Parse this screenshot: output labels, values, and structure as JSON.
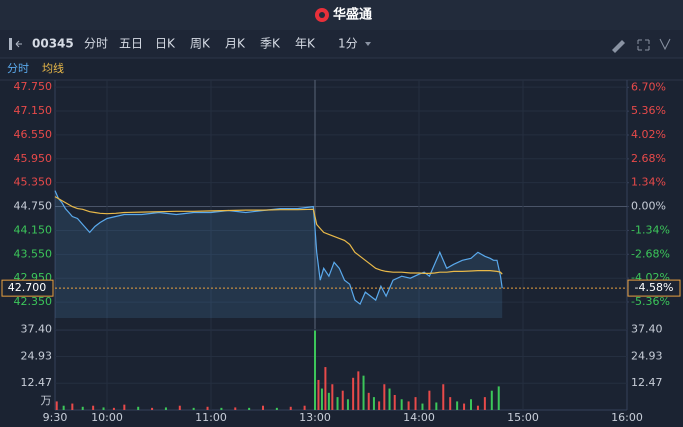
{
  "header": {
    "title": "华盛通"
  },
  "toolbar": {
    "symbol": "00345",
    "tabs": [
      "分时",
      "五日",
      "日K",
      "周K",
      "月K",
      "季K",
      "年K"
    ],
    "interval": "1分"
  },
  "chart_data": {
    "type": "line",
    "x": [
      0,
      2,
      4,
      6,
      8,
      10,
      13,
      16,
      20,
      23,
      26,
      30,
      35,
      40,
      50,
      60,
      70,
      80,
      90,
      100,
      110,
      120,
      130,
      140,
      149,
      150,
      151,
      153,
      155,
      158,
      161,
      164,
      167,
      170,
      173,
      176,
      179,
      182,
      185,
      188,
      191,
      195,
      200,
      205,
      210,
      213,
      216,
      219,
      222,
      226,
      230,
      235,
      240,
      244,
      248,
      251,
      253,
      255,
      257,
      258
    ],
    "series": [
      {
        "name": "分时",
        "color": "#5aa9ec",
        "values": [
          45.15,
          44.95,
          44.85,
          44.7,
          44.6,
          44.5,
          44.45,
          44.3,
          44.1,
          44.25,
          44.35,
          44.45,
          44.5,
          44.55,
          44.55,
          44.6,
          44.55,
          44.6,
          44.6,
          44.65,
          44.6,
          44.65,
          44.7,
          44.7,
          44.75,
          44.2,
          43.6,
          42.9,
          43.2,
          43.0,
          43.35,
          43.2,
          42.9,
          42.8,
          42.4,
          42.3,
          42.6,
          42.5,
          42.4,
          42.75,
          42.5,
          42.9,
          43.0,
          42.95,
          43.05,
          43.1,
          43.0,
          43.3,
          43.6,
          43.2,
          43.3,
          43.4,
          43.45,
          43.6,
          43.5,
          43.45,
          43.4,
          43.4,
          43.0,
          42.7
        ]
      },
      {
        "name": "均线",
        "color": "#e9b949",
        "values": [
          45.0,
          44.95,
          44.9,
          44.85,
          44.8,
          44.75,
          44.7,
          44.68,
          44.62,
          44.6,
          44.58,
          44.57,
          44.58,
          44.6,
          44.61,
          44.62,
          44.63,
          44.63,
          44.64,
          44.65,
          44.66,
          44.66,
          44.67,
          44.67,
          44.68,
          44.5,
          44.3,
          44.2,
          44.1,
          44.05,
          44.0,
          43.95,
          43.9,
          43.8,
          43.6,
          43.5,
          43.4,
          43.3,
          43.2,
          43.15,
          43.12,
          43.1,
          43.1,
          43.08,
          43.08,
          43.07,
          43.07,
          43.08,
          43.1,
          43.1,
          43.12,
          43.12,
          43.13,
          43.14,
          43.14,
          43.14,
          43.13,
          43.12,
          43.1,
          43.05
        ]
      }
    ],
    "xlim": [
      0,
      330
    ],
    "xticks": [
      {
        "value": 0,
        "label": "9:30"
      },
      {
        "value": 30,
        "label": "10:00"
      },
      {
        "value": 90,
        "label": "11:00"
      },
      {
        "value": 150,
        "label": "13:00"
      },
      {
        "value": 210,
        "label": "14:00"
      },
      {
        "value": 270,
        "label": "15:00"
      },
      {
        "value": 330,
        "label": "16:00"
      }
    ],
    "ylim": [
      41.95,
      47.93
    ],
    "yticks": [
      {
        "value": 47.75,
        "label": "47.750"
      },
      {
        "value": 47.15,
        "label": "47.150"
      },
      {
        "value": 46.55,
        "label": "46.550"
      },
      {
        "value": 45.95,
        "label": "45.950"
      },
      {
        "value": 45.35,
        "label": "45.350"
      },
      {
        "value": 44.75,
        "label": "44.750"
      },
      {
        "value": 44.15,
        "label": "44.150"
      },
      {
        "value": 43.55,
        "label": "43.550"
      },
      {
        "value": 42.95,
        "label": "42.950"
      },
      {
        "value": 42.35,
        "label": "42.350"
      }
    ],
    "y2lim": [
      -6.26,
      7.11
    ],
    "y2ticks": [
      {
        "value": 6.7,
        "label": "6.70%"
      },
      {
        "value": 5.36,
        "label": "5.36%"
      },
      {
        "value": 4.02,
        "label": "4.02%"
      },
      {
        "value": 2.68,
        "label": "2.68%"
      },
      {
        "value": 1.34,
        "label": "1.34%"
      },
      {
        "value": 0,
        "label": "0.00%"
      },
      {
        "value": -1.34,
        "label": "-1.34%"
      },
      {
        "value": -2.68,
        "label": "-2.68%"
      },
      {
        "value": -4.02,
        "label": "-4.02%"
      },
      {
        "value": -5.36,
        "label": "-5.36%"
      }
    ],
    "current_price": {
      "value": 42.7,
      "label": "42.700"
    },
    "current_change": {
      "value": -4.58,
      "label": "-4.58%"
    },
    "grid": true,
    "volume": {
      "x": [
        1,
        5,
        10,
        16,
        22,
        28,
        34,
        40,
        48,
        56,
        64,
        72,
        80,
        88,
        96,
        104,
        112,
        120,
        128,
        136,
        144,
        150,
        152,
        154,
        156,
        158,
        160,
        163,
        166,
        169,
        172,
        175,
        178,
        181,
        184,
        187,
        190,
        193,
        196,
        200,
        204,
        208,
        212,
        216,
        220,
        224,
        228,
        232,
        236,
        240,
        244,
        248,
        252,
        256
      ],
      "values": [
        4,
        2,
        3,
        1.5,
        2,
        1.2,
        1,
        2.5,
        1.5,
        1,
        1.2,
        2,
        1,
        1.5,
        1,
        1.2,
        1,
        2,
        1,
        1.5,
        2,
        37,
        14,
        10,
        20,
        8,
        12,
        6,
        9,
        5,
        15,
        18,
        16,
        8,
        6,
        4,
        12,
        10,
        7,
        5,
        4,
        6,
        3,
        9,
        3.5,
        12,
        6,
        4,
        3,
        5,
        2,
        6,
        9,
        11
      ],
      "colors": [
        "#e84a4a",
        "#3cc65a",
        "#e84a4a",
        "#3cc65a",
        "#e84a4a",
        "#3cc65a",
        "#e84a4a",
        "#e84a4a",
        "#3cc65a",
        "#e84a4a",
        "#3cc65a",
        "#e84a4a",
        "#3cc65a",
        "#e84a4a",
        "#3cc65a",
        "#e84a4a",
        "#3cc65a",
        "#e84a4a",
        "#3cc65a",
        "#e84a4a",
        "#e84a4a",
        "#3cc65a",
        "#e84a4a",
        "#3cc65a",
        "#e84a4a",
        "#3cc65a",
        "#e84a4a",
        "#3cc65a",
        "#e84a4a",
        "#3cc65a",
        "#e84a4a",
        "#e84a4a",
        "#3cc65a",
        "#e84a4a",
        "#3cc65a",
        "#e84a4a",
        "#e84a4a",
        "#3cc65a",
        "#e84a4a",
        "#3cc65a",
        "#e84a4a",
        "#e84a4a",
        "#3cc65a",
        "#e84a4a",
        "#3cc65a",
        "#e84a4a",
        "#e84a4a",
        "#3cc65a",
        "#e84a4a",
        "#3cc65a",
        "#e84a4a",
        "#e84a4a",
        "#3cc65a",
        "#3cc65a"
      ],
      "ylim": [
        0,
        41
      ],
      "yticks": [
        {
          "value": 37.4,
          "label": "37.40"
        },
        24.93,
        12.47
      ],
      "unit": "万"
    }
  }
}
